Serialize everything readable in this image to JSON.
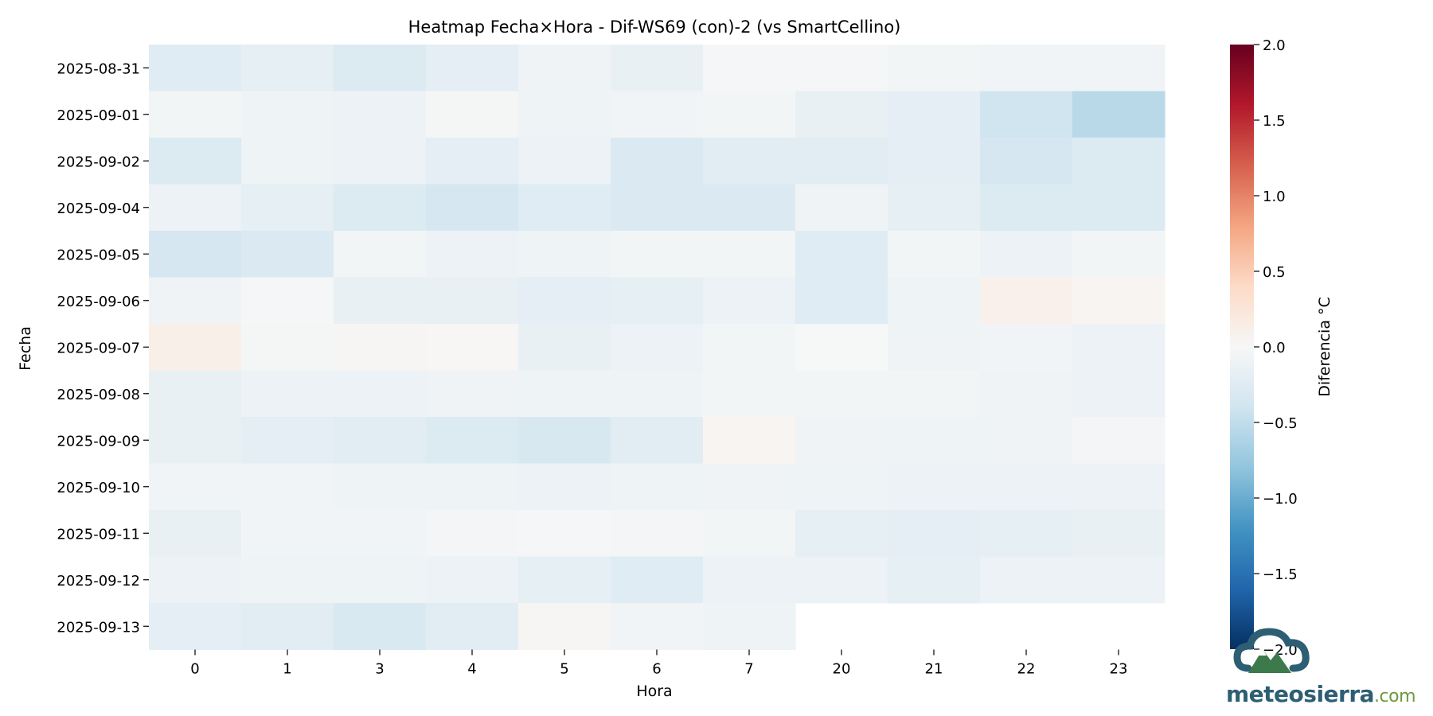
{
  "chart_data": {
    "type": "heatmap",
    "title": "Heatmap Fecha×Hora - Dif-WS69 (con)-2 (vs SmartCellino)",
    "xlabel": "Hora",
    "ylabel": "Fecha",
    "x": [
      "0",
      "1",
      "3",
      "4",
      "5",
      "6",
      "7",
      "20",
      "21",
      "22",
      "23"
    ],
    "y": [
      "2025-08-31",
      "2025-09-01",
      "2025-09-02",
      "2025-09-04",
      "2025-09-05",
      "2025-09-06",
      "2025-09-07",
      "2025-09-08",
      "2025-09-09",
      "2025-09-10",
      "2025-09-11",
      "2025-09-12",
      "2025-09-13"
    ],
    "values": [
      [
        -0.25,
        -0.18,
        -0.28,
        -0.2,
        -0.08,
        -0.15,
        -0.02,
        -0.02,
        -0.05,
        -0.07,
        -0.07
      ],
      [
        -0.05,
        -0.1,
        -0.12,
        -0.03,
        -0.1,
        -0.06,
        -0.05,
        -0.15,
        -0.2,
        -0.4,
        -0.55
      ],
      [
        -0.28,
        -0.1,
        -0.12,
        -0.2,
        -0.12,
        -0.3,
        -0.22,
        -0.22,
        -0.2,
        -0.35,
        -0.28
      ],
      [
        -0.12,
        -0.18,
        -0.28,
        -0.35,
        -0.25,
        -0.3,
        -0.3,
        -0.08,
        -0.18,
        -0.28,
        -0.28
      ],
      [
        -0.35,
        -0.3,
        -0.05,
        -0.12,
        -0.1,
        -0.05,
        -0.05,
        -0.25,
        -0.05,
        -0.12,
        -0.05
      ],
      [
        -0.08,
        -0.02,
        -0.15,
        -0.15,
        -0.2,
        -0.18,
        -0.12,
        -0.25,
        -0.1,
        0.1,
        0.04
      ],
      [
        0.12,
        -0.03,
        0.03,
        0.02,
        -0.15,
        -0.12,
        -0.05,
        -0.01,
        -0.08,
        -0.07,
        -0.12
      ],
      [
        -0.15,
        -0.12,
        -0.12,
        -0.08,
        -0.1,
        -0.1,
        -0.05,
        -0.05,
        -0.05,
        -0.08,
        -0.12
      ],
      [
        -0.15,
        -0.2,
        -0.22,
        -0.28,
        -0.33,
        -0.22,
        0.05,
        -0.08,
        -0.1,
        -0.08,
        -0.04
      ],
      [
        -0.06,
        -0.06,
        -0.1,
        -0.1,
        -0.12,
        -0.1,
        -0.08,
        -0.1,
        -0.12,
        -0.12,
        -0.12
      ],
      [
        -0.15,
        -0.06,
        -0.06,
        -0.04,
        -0.02,
        -0.04,
        -0.05,
        -0.18,
        -0.2,
        -0.18,
        -0.15
      ],
      [
        -0.12,
        -0.1,
        -0.1,
        -0.12,
        -0.18,
        -0.25,
        -0.12,
        -0.12,
        -0.18,
        -0.12,
        -0.12
      ],
      [
        -0.2,
        -0.22,
        -0.32,
        -0.22,
        0.03,
        -0.06,
        -0.1,
        null,
        null,
        null,
        null
      ]
    ],
    "colorbar": {
      "label": "Diferencia °C",
      "min": -2.0,
      "max": 2.0,
      "ticks": [
        2.0,
        1.5,
        1.0,
        0.5,
        0.0,
        -0.5,
        -1.0,
        -1.5,
        -2.0
      ],
      "tick_labels": [
        "2.0",
        "1.5",
        "1.0",
        "0.5",
        "0.0",
        "−0.5",
        "−1.0",
        "−1.5",
        "−2.0"
      ],
      "colormap": "RdBu_r"
    }
  },
  "logo": {
    "name": "meteosierra",
    "suffix": ".com"
  }
}
